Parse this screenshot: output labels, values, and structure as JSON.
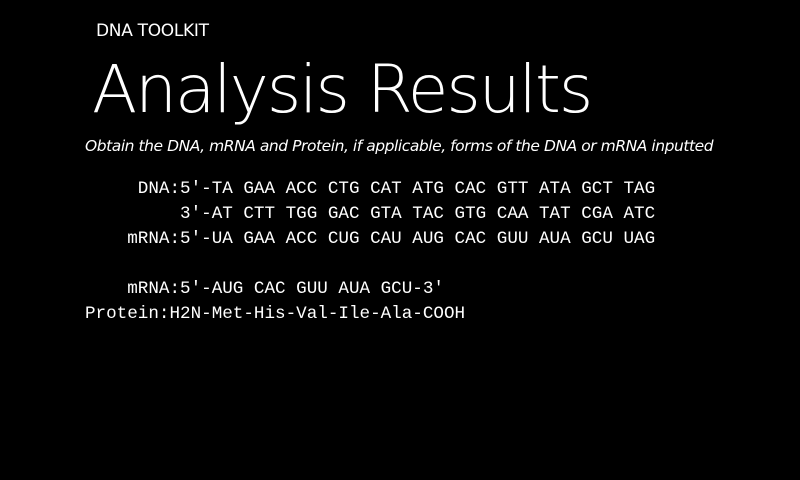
{
  "app": {
    "title": "DNA TOOLKIT"
  },
  "page": {
    "title": "Analysis Results",
    "subtitle": "Obtain the DNA, mRNA and Protein, if applicable, forms of the DNA or mRNA inputted"
  },
  "results": {
    "dna_line": "     DNA:5'-TA GAA ACC CTG CAT ATG CAC GTT ATA GCT TAG",
    "dna_complement_line": "         3'-AT CTT TGG GAC GTA TAC GTG CAA TAT CGA ATC",
    "mrna_full_line": "    mRNA:5'-UA GAA ACC CUG CAU AUG CAC GUU AUA GCU UAG",
    "mrna_orf_line": "    mRNA:5'-AUG CAC GUU AUA GCU-3'",
    "protein_line": "Protein:H2N-Met-His-Val-Ile-Ala-COOH"
  },
  "colors": {
    "background": "#000000",
    "text": "#ffffff"
  }
}
